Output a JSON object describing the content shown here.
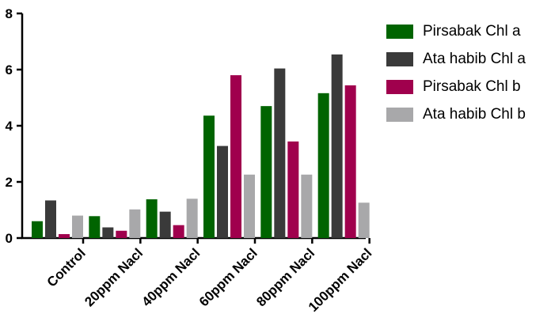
{
  "chart_data": {
    "type": "bar",
    "title": "",
    "xlabel": "",
    "ylabel": "",
    "ylim": [
      0,
      8
    ],
    "yticks": [
      0,
      2,
      4,
      6,
      8
    ],
    "categories": [
      "Control",
      "20ppm Nacl",
      "40ppm Nacl",
      "60ppm Nacl",
      "80ppm Nacl",
      "100ppm Nacl"
    ],
    "series": [
      {
        "name": "Pirsabak Chl a",
        "color": "#006400",
        "values": [
          0.6,
          0.78,
          1.38,
          4.36,
          4.7,
          5.16
        ]
      },
      {
        "name": "Ata habib Chl a",
        "color": "#3a3a3a",
        "values": [
          1.34,
          0.38,
          0.94,
          3.28,
          6.04,
          6.54
        ]
      },
      {
        "name": "Pirsabak Chl b",
        "color": "#a0004d",
        "values": [
          0.14,
          0.26,
          0.46,
          5.8,
          3.44,
          5.44
        ]
      },
      {
        "name": "Ata habib Chl b",
        "color": "#a8a8aa",
        "values": [
          0.8,
          1.02,
          1.4,
          2.26,
          2.26,
          1.26
        ]
      }
    ],
    "legend_position": "top-right",
    "grid": false
  }
}
